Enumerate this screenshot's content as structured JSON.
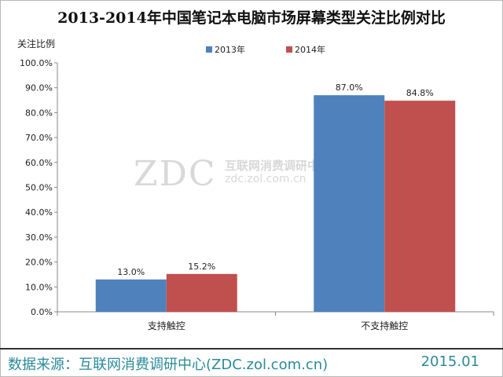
{
  "title": "2013-2014年中国笔记本电脑市场屏幕类型关注比例对比",
  "footer": {
    "source": "数据来源：互联网消费调研中心(ZDC.zol.com.cn)",
    "date": "2015.01"
  },
  "watermark": {
    "logo": "ZDC",
    "name": "互联网消费调研中心",
    "url": "zdc.zol.com.cn"
  },
  "chart_data": {
    "type": "bar",
    "title": "2013-2014年中国笔记本电脑市场屏幕类型关注比例对比",
    "ylabel": "关注比例",
    "xlabel": "",
    "categories": [
      "支持触控",
      "不支持触控"
    ],
    "series": [
      {
        "name": "2013年",
        "values": [
          13.0,
          87.0
        ],
        "color": "#4f81bd"
      },
      {
        "name": "2014年",
        "values": [
          15.2,
          84.8
        ],
        "color": "#c0504d"
      }
    ],
    "ylim": [
      0,
      100
    ],
    "yticks": [
      0,
      10,
      20,
      30,
      40,
      50,
      60,
      70,
      80,
      90,
      100
    ],
    "y_tick_format": "percent_1dp",
    "data_labels": true,
    "legend_position": "top",
    "grid": false
  }
}
